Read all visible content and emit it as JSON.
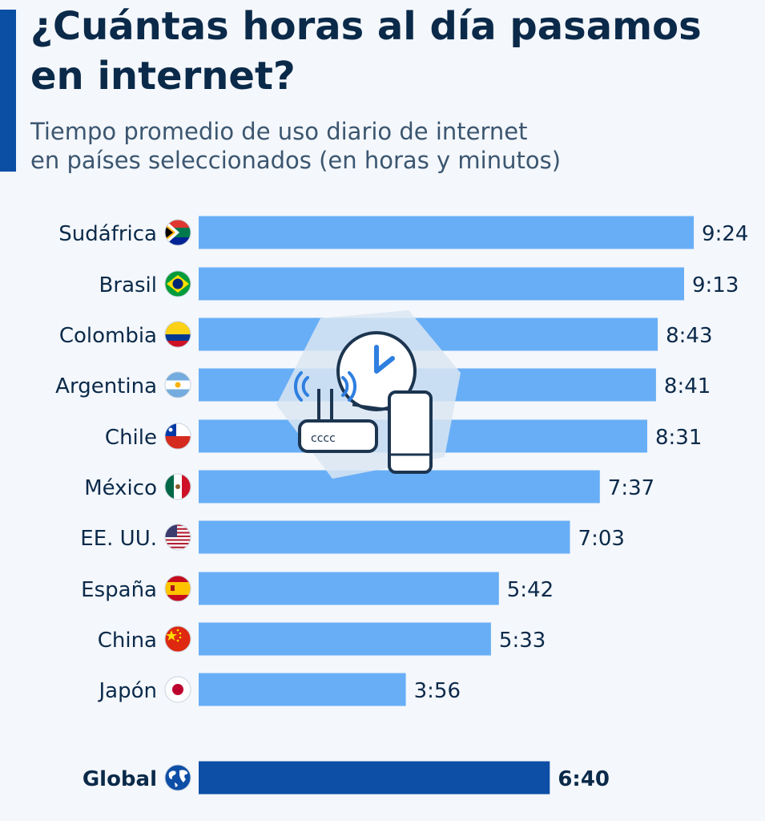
{
  "title": "¿Cuántas horas al día pasamos en internet?",
  "subtitle_lines": [
    "Tiempo promedio de uso diario de internet",
    "en países seleccionados (en horas y minutos)"
  ],
  "colors": {
    "bar": "#68aef6",
    "bar_highlight": "#0d4ea6",
    "text": "#0b2a4a",
    "accent": "#0a4fa3"
  },
  "decoration_icon": "router-clock-phone-icon",
  "chart_data": {
    "type": "bar",
    "orientation": "horizontal",
    "categories": [
      "Sudáfrica",
      "Brasil",
      "Colombia",
      "Argentina",
      "Chile",
      "México",
      "EE. UU.",
      "España",
      "China",
      "Japón",
      "Global"
    ],
    "flags": [
      "south-africa-flag-icon",
      "brazil-flag-icon",
      "colombia-flag-icon",
      "argentina-flag-icon",
      "chile-flag-icon",
      "mexico-flag-icon",
      "usa-flag-icon",
      "spain-flag-icon",
      "china-flag-icon",
      "japan-flag-icon",
      "globe-icon"
    ],
    "labels": [
      "9:24",
      "9:13",
      "8:43",
      "8:41",
      "8:31",
      "7:37",
      "7:03",
      "5:42",
      "5:33",
      "3:56",
      "6:40"
    ],
    "values_minutes": [
      564,
      553,
      523,
      521,
      511,
      457,
      423,
      342,
      333,
      236,
      400
    ],
    "highlight": "Global",
    "title": "¿Cuántas horas al día pasamos en internet?",
    "xlabel": "",
    "ylabel": "",
    "grid": false
  }
}
